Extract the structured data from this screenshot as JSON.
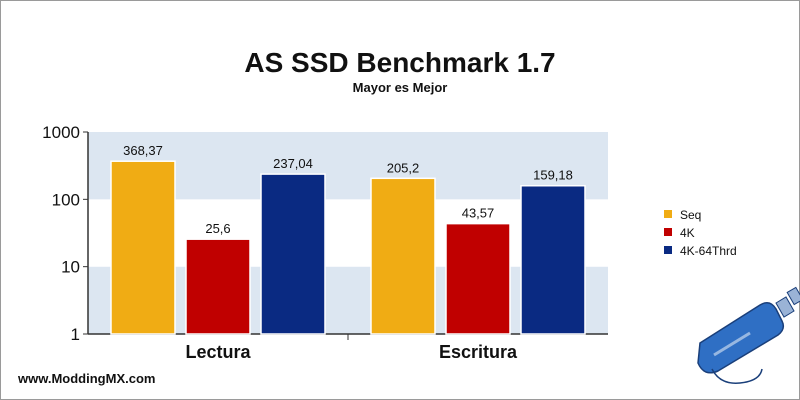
{
  "footer_text": "www.ModdingMX.com",
  "logo": {
    "icon": "spray-bottle-icon",
    "color": "#2f6fc4"
  },
  "colors": {
    "band": "#dce6f1",
    "axis": "#333333"
  },
  "chart_data": {
    "type": "bar",
    "title": "AS SSD Benchmark 1.7",
    "subtitle": "Mayor es Mejor",
    "xlabel": "",
    "ylabel": "",
    "yscale": "log",
    "ylim": [
      1,
      1000
    ],
    "yticks": [
      1,
      10,
      100,
      1000
    ],
    "ytick_labels": [
      "1",
      "10",
      "100",
      "1000"
    ],
    "categories": [
      "Lectura",
      "Escritura"
    ],
    "series": [
      {
        "name": "Seq",
        "color": "#f0ac14",
        "values": [
          368.37,
          205.2
        ],
        "labels": [
          "368,37",
          "205,2"
        ]
      },
      {
        "name": "4K",
        "color": "#c00000",
        "values": [
          25.6,
          43.57
        ],
        "labels": [
          "25,6",
          "43,57"
        ]
      },
      {
        "name": "4K-64Thrd",
        "color": "#0a2a82",
        "values": [
          237.04,
          159.18
        ],
        "labels": [
          "237,04",
          "159,18"
        ]
      }
    ],
    "legend_position": "right",
    "grid": "alternating-bands"
  }
}
